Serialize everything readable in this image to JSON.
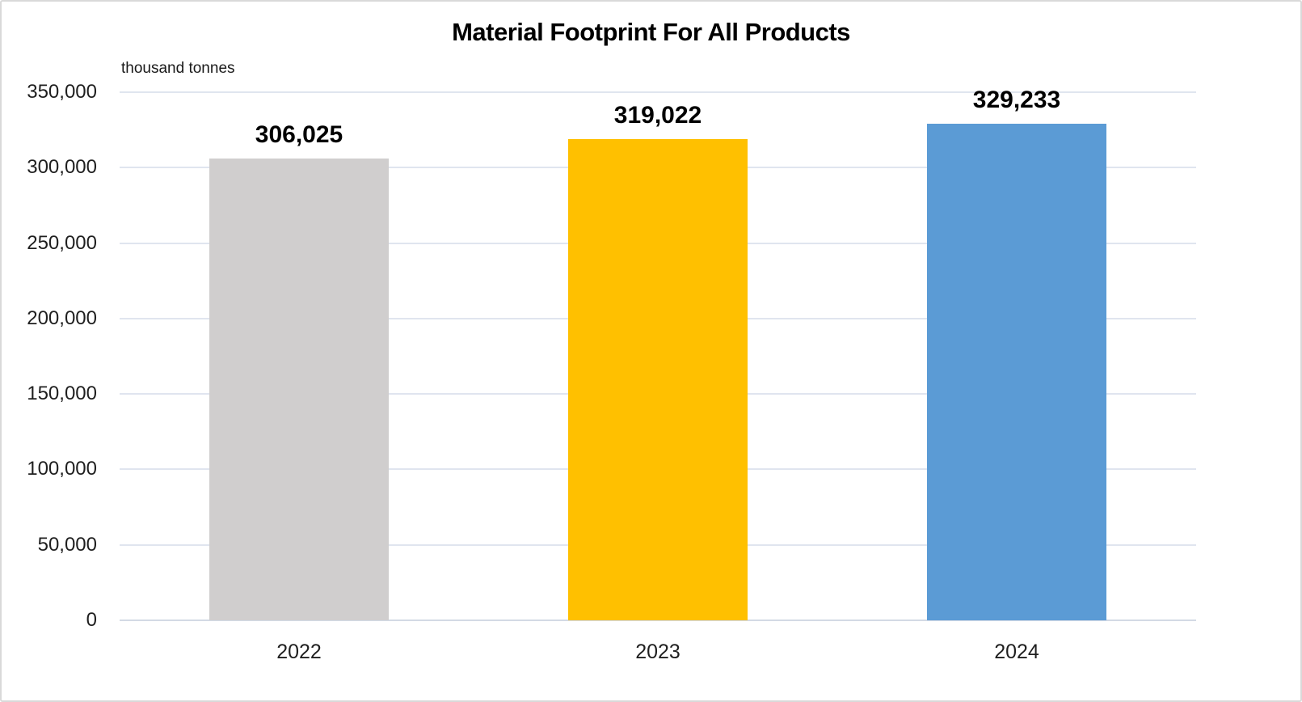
{
  "chart_data": {
    "type": "bar",
    "title": "Material Footprint For All Products",
    "units_label": "thousand tonnes",
    "categories": [
      "2022",
      "2023",
      "2024"
    ],
    "values": [
      306025,
      319022,
      329233
    ],
    "value_labels": [
      "306,025",
      "319,022",
      "329,233"
    ],
    "bar_colors": [
      "#D0CECE",
      "#FFC000",
      "#5B9BD5"
    ],
    "ylim": [
      0,
      350000
    ],
    "y_ticks": [
      0,
      50000,
      100000,
      150000,
      200000,
      250000,
      300000,
      350000
    ],
    "y_tick_labels": [
      "0",
      "50,000",
      "100,000",
      "150,000",
      "200,000",
      "250,000",
      "300,000",
      "350,000"
    ],
    "xlabel": "",
    "ylabel": "thousand tonnes",
    "grid": true,
    "legend": "none"
  },
  "colors": {
    "background": "#FFFFFF",
    "canvas_border": "#D9D9D9",
    "gridline": "#E0E5EF",
    "axis_line": "#D3DAE5",
    "title_text": "#000000",
    "tick_text": "#1F1F1F",
    "value_label_text": "#000000"
  }
}
